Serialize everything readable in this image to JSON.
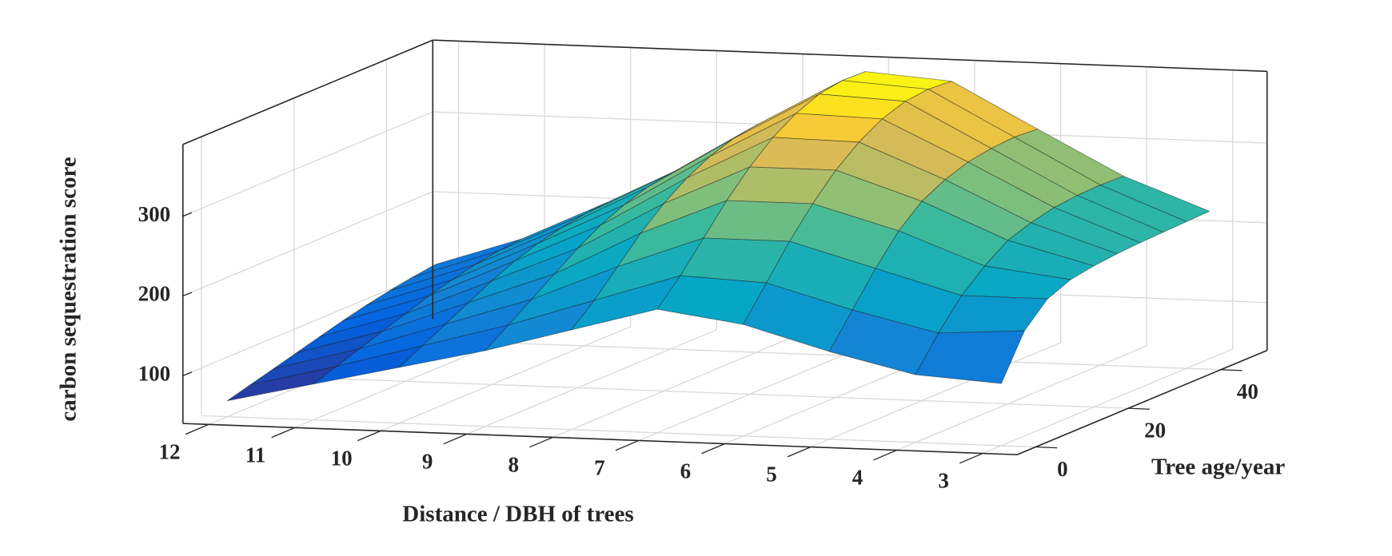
{
  "chart_data": {
    "type": "surface",
    "xlabel": "Distance / DBH of trees",
    "ylabel": "Tree age/year",
    "zlabel": "carbon sequestration score",
    "x": [
      12,
      11,
      10,
      9,
      8,
      7,
      6,
      5,
      4,
      3
    ],
    "y": [
      0,
      5,
      10,
      15,
      20,
      25,
      30,
      35,
      40,
      45
    ],
    "z": [
      [
        60,
        85,
        110,
        135,
        165,
        195,
        180,
        150,
        125,
        118
      ],
      [
        68,
        95,
        125,
        155,
        190,
        225,
        220,
        190,
        165,
        172
      ],
      [
        76,
        105,
        140,
        175,
        220,
        260,
        260,
        230,
        200,
        200
      ],
      [
        84,
        115,
        155,
        195,
        250,
        295,
        295,
        265,
        225,
        212
      ],
      [
        92,
        125,
        170,
        215,
        275,
        325,
        325,
        290,
        245,
        217
      ],
      [
        100,
        135,
        183,
        232,
        295,
        350,
        348,
        305,
        255,
        220
      ],
      [
        107,
        143,
        193,
        245,
        310,
        368,
        365,
        315,
        262,
        222
      ],
      [
        113,
        150,
        200,
        255,
        320,
        380,
        375,
        320,
        265,
        223
      ],
      [
        118,
        155,
        205,
        260,
        325,
        385,
        378,
        322,
        266,
        224
      ],
      [
        122,
        158,
        208,
        262,
        326,
        384,
        376,
        320,
        265,
        225
      ]
    ],
    "xlim": [
      2.6,
      12.3
    ],
    "xdir": "reverse",
    "xticks": [
      3,
      4,
      5,
      6,
      7,
      8,
      9,
      10,
      11,
      12
    ],
    "ylim": [
      -4,
      50
    ],
    "yticks": [
      0,
      20,
      40
    ],
    "zlim": [
      40,
      390
    ],
    "zticks": [
      100,
      200,
      300
    ],
    "grid": true,
    "colormap": "parula"
  }
}
